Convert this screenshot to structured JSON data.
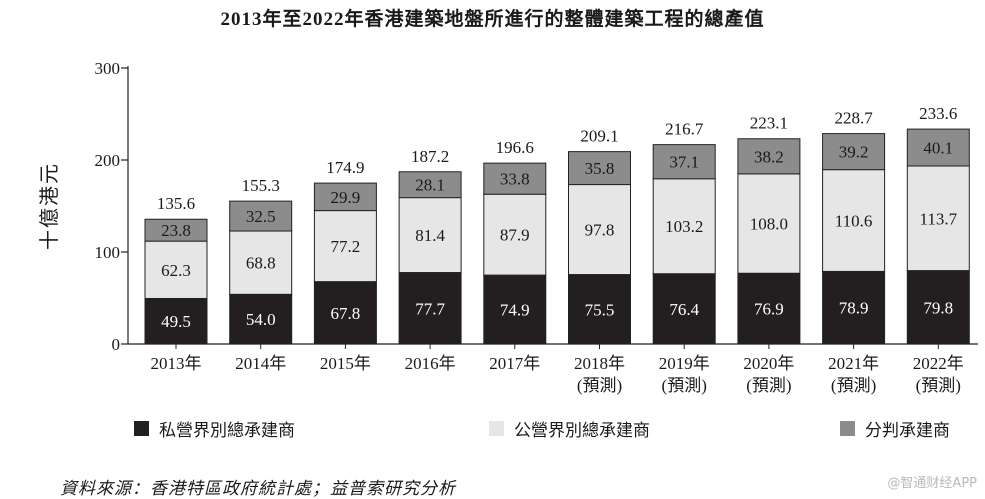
{
  "chart_data": {
    "type": "bar",
    "stacked": true,
    "title": "2013年至2022年香港建築地盤所進行的整體建築工程的總產值",
    "ylabel": "十億港元",
    "ylim": [
      0,
      300
    ],
    "yticks": [
      0,
      100,
      200,
      300
    ],
    "categories": [
      "2013年",
      "2014年",
      "2015年",
      "2016年",
      "2017年",
      "2018年",
      "2019年",
      "2020年",
      "2021年",
      "2022年"
    ],
    "category_notes": [
      "",
      "",
      "",
      "",
      "",
      "(預測)",
      "(預測)",
      "(預測)",
      "(預測)",
      "(預測)"
    ],
    "series": [
      {
        "name": "私營界別總承建商",
        "color": "#231f20",
        "label_color": "#ffffff",
        "values": [
          49.5,
          54.0,
          67.8,
          77.7,
          74.9,
          75.5,
          76.4,
          76.9,
          78.9,
          79.8
        ]
      },
      {
        "name": "公營界別總承建商",
        "color": "#e6e6e6",
        "label_color": "#1a1a1a",
        "values": [
          62.3,
          68.8,
          77.2,
          81.4,
          87.9,
          97.8,
          103.2,
          108.0,
          110.6,
          113.7
        ]
      },
      {
        "name": "分判承建商",
        "color": "#8c8c8c",
        "label_color": "#1a1a1a",
        "values": [
          23.8,
          32.5,
          29.9,
          28.1,
          33.8,
          35.8,
          37.1,
          38.2,
          39.2,
          40.1
        ]
      }
    ],
    "totals": [
      135.6,
      155.3,
      174.9,
      187.2,
      196.6,
      209.1,
      216.7,
      223.1,
      228.7,
      233.6
    ],
    "legend_position": "bottom",
    "grid": false
  },
  "source": "資料來源：香港特區政府統計處；益普索研究分析",
  "watermark": "@智通财经APP"
}
